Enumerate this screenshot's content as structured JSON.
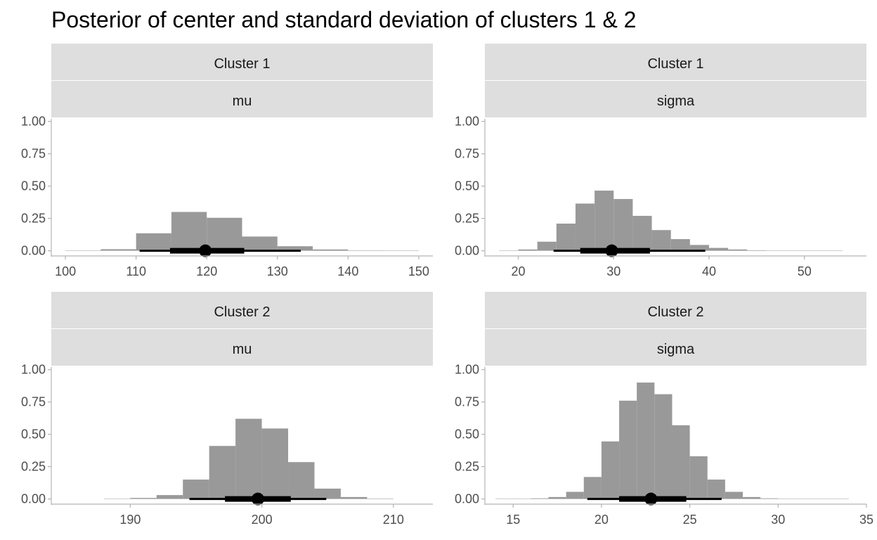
{
  "title": "Posterior of center and standard deviation of clusters 1 & 2",
  "chart_data": {
    "type": "bar",
    "title": "Posterior of center and standard deviation of clusters 1 & 2",
    "xlabel": "",
    "ylabel": "",
    "grid": false,
    "bar_color": "#999999",
    "interval_color": "#000000",
    "strip_color": "#dedede",
    "axis_color": "#b3b3b3",
    "panels": [
      {
        "strips": [
          "Cluster 1",
          "mu"
        ],
        "xlim": [
          98,
          152
        ],
        "ylim": [
          -0.04,
          1.02
        ],
        "x_ticks": [
          100,
          110,
          120,
          130,
          140,
          150
        ],
        "y_ticks": [
          "0.00",
          "0.25",
          "0.50",
          "0.75",
          "1.00"
        ],
        "bins": [
          {
            "x0": 100,
            "x1": 105,
            "value": 0.002
          },
          {
            "x0": 105,
            "x1": 110,
            "value": 0.012
          },
          {
            "x0": 110,
            "x1": 115,
            "value": 0.135
          },
          {
            "x0": 115,
            "x1": 120,
            "value": 0.3
          },
          {
            "x0": 120,
            "x1": 125,
            "value": 0.255
          },
          {
            "x0": 125,
            "x1": 130,
            "value": 0.11
          },
          {
            "x0": 130,
            "x1": 135,
            "value": 0.035
          },
          {
            "x0": 135,
            "x1": 140,
            "value": 0.01
          },
          {
            "x0": 140,
            "x1": 145,
            "value": 0.003
          },
          {
            "x0": 145,
            "x1": 150,
            "value": 0.001
          }
        ],
        "point": 119.8,
        "interval_66": [
          114.8,
          125.3
        ],
        "interval_95": [
          110.5,
          133.3
        ]
      },
      {
        "strips": [
          "Cluster 1",
          "sigma"
        ],
        "xlim": [
          16.5,
          56.5
        ],
        "ylim": [
          -0.04,
          1.02
        ],
        "x_ticks": [
          20,
          30,
          40,
          50
        ],
        "y_ticks": [
          "0.00",
          "0.25",
          "0.50",
          "0.75",
          "1.00"
        ],
        "bins": [
          {
            "x0": 18,
            "x1": 20,
            "value": 0.002
          },
          {
            "x0": 20,
            "x1": 22,
            "value": 0.01
          },
          {
            "x0": 22,
            "x1": 24,
            "value": 0.07
          },
          {
            "x0": 24,
            "x1": 26,
            "value": 0.21
          },
          {
            "x0": 26,
            "x1": 28,
            "value": 0.365
          },
          {
            "x0": 28,
            "x1": 30,
            "value": 0.465
          },
          {
            "x0": 30,
            "x1": 32,
            "value": 0.4
          },
          {
            "x0": 32,
            "x1": 34,
            "value": 0.27
          },
          {
            "x0": 34,
            "x1": 36,
            "value": 0.16
          },
          {
            "x0": 36,
            "x1": 38,
            "value": 0.09
          },
          {
            "x0": 38,
            "x1": 40,
            "value": 0.045
          },
          {
            "x0": 40,
            "x1": 42,
            "value": 0.022
          },
          {
            "x0": 42,
            "x1": 44,
            "value": 0.01
          },
          {
            "x0": 44,
            "x1": 46,
            "value": 0.004
          },
          {
            "x0": 46,
            "x1": 48,
            "value": 0.002
          },
          {
            "x0": 48,
            "x1": 50,
            "value": 0.001
          },
          {
            "x0": 50,
            "x1": 52,
            "value": 0.001
          },
          {
            "x0": 52,
            "x1": 54,
            "value": 0.001
          }
        ],
        "point": 29.8,
        "interval_66": [
          26.5,
          33.8
        ],
        "interval_95": [
          23.7,
          39.6
        ]
      },
      {
        "strips": [
          "Cluster 2",
          "mu"
        ],
        "xlim": [
          184,
          213
        ],
        "ylim": [
          -0.04,
          1.02
        ],
        "x_ticks": [
          190,
          200,
          210
        ],
        "y_ticks": [
          "0.00",
          "0.25",
          "0.50",
          "0.75",
          "1.00"
        ],
        "bins": [
          {
            "x0": 188,
            "x1": 190,
            "value": 0.002
          },
          {
            "x0": 190,
            "x1": 192,
            "value": 0.008
          },
          {
            "x0": 192,
            "x1": 194,
            "value": 0.03
          },
          {
            "x0": 194,
            "x1": 196,
            "value": 0.15
          },
          {
            "x0": 196,
            "x1": 198,
            "value": 0.41
          },
          {
            "x0": 198,
            "x1": 200,
            "value": 0.62
          },
          {
            "x0": 200,
            "x1": 202,
            "value": 0.545
          },
          {
            "x0": 202,
            "x1": 204,
            "value": 0.285
          },
          {
            "x0": 204,
            "x1": 206,
            "value": 0.08
          },
          {
            "x0": 206,
            "x1": 208,
            "value": 0.015
          },
          {
            "x0": 208,
            "x1": 210,
            "value": 0.003
          }
        ],
        "point": 199.7,
        "interval_66": [
          197.2,
          202.2
        ],
        "interval_95": [
          194.5,
          204.9
        ]
      },
      {
        "strips": [
          "Cluster 2",
          "sigma"
        ],
        "xlim": [
          13.4,
          35
        ],
        "ylim": [
          -0.04,
          1.02
        ],
        "x_ticks": [
          15,
          20,
          25,
          30,
          35
        ],
        "y_ticks": [
          "0.00",
          "0.25",
          "0.50",
          "0.75",
          "1.00"
        ],
        "bins": [
          {
            "x0": 14,
            "x1": 15,
            "value": 0.001
          },
          {
            "x0": 15,
            "x1": 16,
            "value": 0.002
          },
          {
            "x0": 16,
            "x1": 17,
            "value": 0.005
          },
          {
            "x0": 17,
            "x1": 18,
            "value": 0.015
          },
          {
            "x0": 18,
            "x1": 19,
            "value": 0.055
          },
          {
            "x0": 19,
            "x1": 20,
            "value": 0.17
          },
          {
            "x0": 20,
            "x1": 21,
            "value": 0.445
          },
          {
            "x0": 21,
            "x1": 22,
            "value": 0.76
          },
          {
            "x0": 22,
            "x1": 23,
            "value": 0.9
          },
          {
            "x0": 23,
            "x1": 24,
            "value": 0.81
          },
          {
            "x0": 24,
            "x1": 25,
            "value": 0.57
          },
          {
            "x0": 25,
            "x1": 26,
            "value": 0.33
          },
          {
            "x0": 26,
            "x1": 27,
            "value": 0.15
          },
          {
            "x0": 27,
            "x1": 28,
            "value": 0.055
          },
          {
            "x0": 28,
            "x1": 29,
            "value": 0.015
          },
          {
            "x0": 29,
            "x1": 30,
            "value": 0.005
          },
          {
            "x0": 30,
            "x1": 31,
            "value": 0.002
          },
          {
            "x0": 31,
            "x1": 32,
            "value": 0.001
          },
          {
            "x0": 32,
            "x1": 33,
            "value": 0.001
          },
          {
            "x0": 33,
            "x1": 34,
            "value": 0.001
          }
        ],
        "point": 22.8,
        "interval_66": [
          21.0,
          24.8
        ],
        "interval_95": [
          19.2,
          26.8
        ]
      }
    ]
  }
}
